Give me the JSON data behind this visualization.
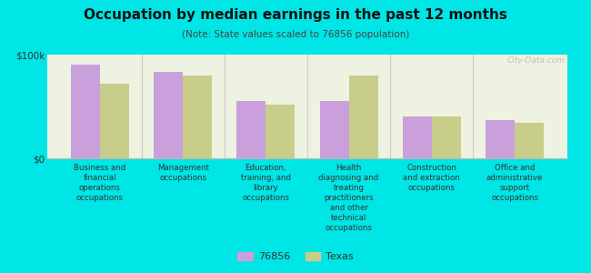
{
  "title": "Occupation by median earnings in the past 12 months",
  "subtitle": "(Note: State values scaled to 76856 population)",
  "background_color": "#00e5e5",
  "plot_bg_color": "#eef2e0",
  "bar_color_76856": "#c9a0dc",
  "bar_color_texas": "#c8cd8a",
  "ylim": [
    0,
    100000
  ],
  "yticks": [
    0,
    100000
  ],
  "yticklabels": [
    "$0",
    "$100k"
  ],
  "categories": [
    "Business and\nfinancial\noperations\noccupations",
    "Management\noccupations",
    "Education,\ntraining, and\nlibrary\noccupations",
    "Health\ndiagnosing and\ntreating\npractitioners\nand other\ntechnical\noccupations",
    "Construction\nand extraction\noccupations",
    "Office and\nadministrative\nsupport\noccupations"
  ],
  "values_76856": [
    90000,
    83000,
    55000,
    55000,
    40000,
    37000
  ],
  "values_texas": [
    72000,
    80000,
    52000,
    80000,
    40000,
    34000
  ],
  "legend_labels": [
    "76856",
    "Texas"
  ],
  "watermark": "City-Data.com"
}
